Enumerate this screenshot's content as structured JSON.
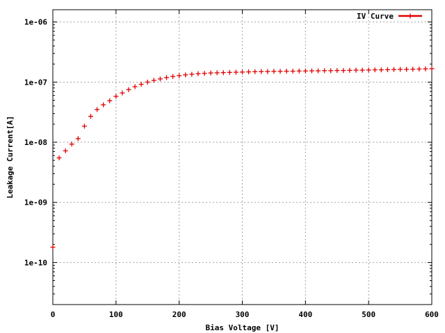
{
  "chart_data": {
    "type": "scatter",
    "title": "",
    "xlabel": "Bias Voltage [V]",
    "ylabel": "Leakage Current[A]",
    "xlim": [
      0,
      600
    ],
    "ylim": [
      2e-11,
      1.6e-06
    ],
    "yscale": "log",
    "grid": true,
    "legend_position": "top-right",
    "x_ticks": [
      {
        "value": 0,
        "label": "0"
      },
      {
        "value": 100,
        "label": "100"
      },
      {
        "value": 200,
        "label": "200"
      },
      {
        "value": 300,
        "label": "300"
      },
      {
        "value": 400,
        "label": "400"
      },
      {
        "value": 500,
        "label": "500"
      },
      {
        "value": 600,
        "label": "600"
      }
    ],
    "y_ticks": [
      {
        "value": 1e-10,
        "label": "1e-10"
      },
      {
        "value": 1e-09,
        "label": "1e-09"
      },
      {
        "value": 1e-08,
        "label": "1e-08"
      },
      {
        "value": 1e-07,
        "label": "1e-07"
      },
      {
        "value": 1e-06,
        "label": "1e-06"
      }
    ],
    "series": [
      {
        "name": "IV Curve",
        "color": "#e00000",
        "marker": "plus",
        "points": [
          [
            0,
            1.8e-10
          ],
          [
            10,
            5.5e-09
          ],
          [
            20,
            7.2e-09
          ],
          [
            30,
            9.3e-09
          ],
          [
            40,
            1.15e-08
          ],
          [
            50,
            1.85e-08
          ],
          [
            60,
            2.7e-08
          ],
          [
            70,
            3.5e-08
          ],
          [
            80,
            4.2e-08
          ],
          [
            90,
            4.9e-08
          ],
          [
            100,
            5.8e-08
          ],
          [
            110,
            6.6e-08
          ],
          [
            120,
            7.5e-08
          ],
          [
            130,
            8.4e-08
          ],
          [
            140,
            9.2e-08
          ],
          [
            150,
            1e-07
          ],
          [
            160,
            1.07e-07
          ],
          [
            170,
            1.13e-07
          ],
          [
            180,
            1.19e-07
          ],
          [
            190,
            1.24e-07
          ],
          [
            200,
            1.28e-07
          ],
          [
            210,
            1.32e-07
          ],
          [
            220,
            1.35e-07
          ],
          [
            230,
            1.38e-07
          ],
          [
            240,
            1.4e-07
          ],
          [
            250,
            1.42e-07
          ],
          [
            260,
            1.43e-07
          ],
          [
            270,
            1.44e-07
          ],
          [
            280,
            1.45e-07
          ],
          [
            290,
            1.46e-07
          ],
          [
            300,
            1.47e-07
          ],
          [
            310,
            1.48e-07
          ],
          [
            320,
            1.49e-07
          ],
          [
            330,
            1.5e-07
          ],
          [
            340,
            1.5e-07
          ],
          [
            350,
            1.51e-07
          ],
          [
            360,
            1.51e-07
          ],
          [
            370,
            1.52e-07
          ],
          [
            380,
            1.52e-07
          ],
          [
            390,
            1.53e-07
          ],
          [
            400,
            1.53e-07
          ],
          [
            410,
            1.54e-07
          ],
          [
            420,
            1.54e-07
          ],
          [
            430,
            1.55e-07
          ],
          [
            440,
            1.55e-07
          ],
          [
            450,
            1.56e-07
          ],
          [
            460,
            1.56e-07
          ],
          [
            470,
            1.57e-07
          ],
          [
            480,
            1.58e-07
          ],
          [
            490,
            1.58e-07
          ],
          [
            500,
            1.59e-07
          ],
          [
            510,
            1.6e-07
          ],
          [
            520,
            1.6e-07
          ],
          [
            530,
            1.61e-07
          ],
          [
            540,
            1.62e-07
          ],
          [
            550,
            1.63e-07
          ],
          [
            560,
            1.63e-07
          ],
          [
            570,
            1.64e-07
          ],
          [
            580,
            1.65e-07
          ],
          [
            590,
            1.66e-07
          ],
          [
            600,
            1.67e-07
          ]
        ]
      }
    ]
  }
}
